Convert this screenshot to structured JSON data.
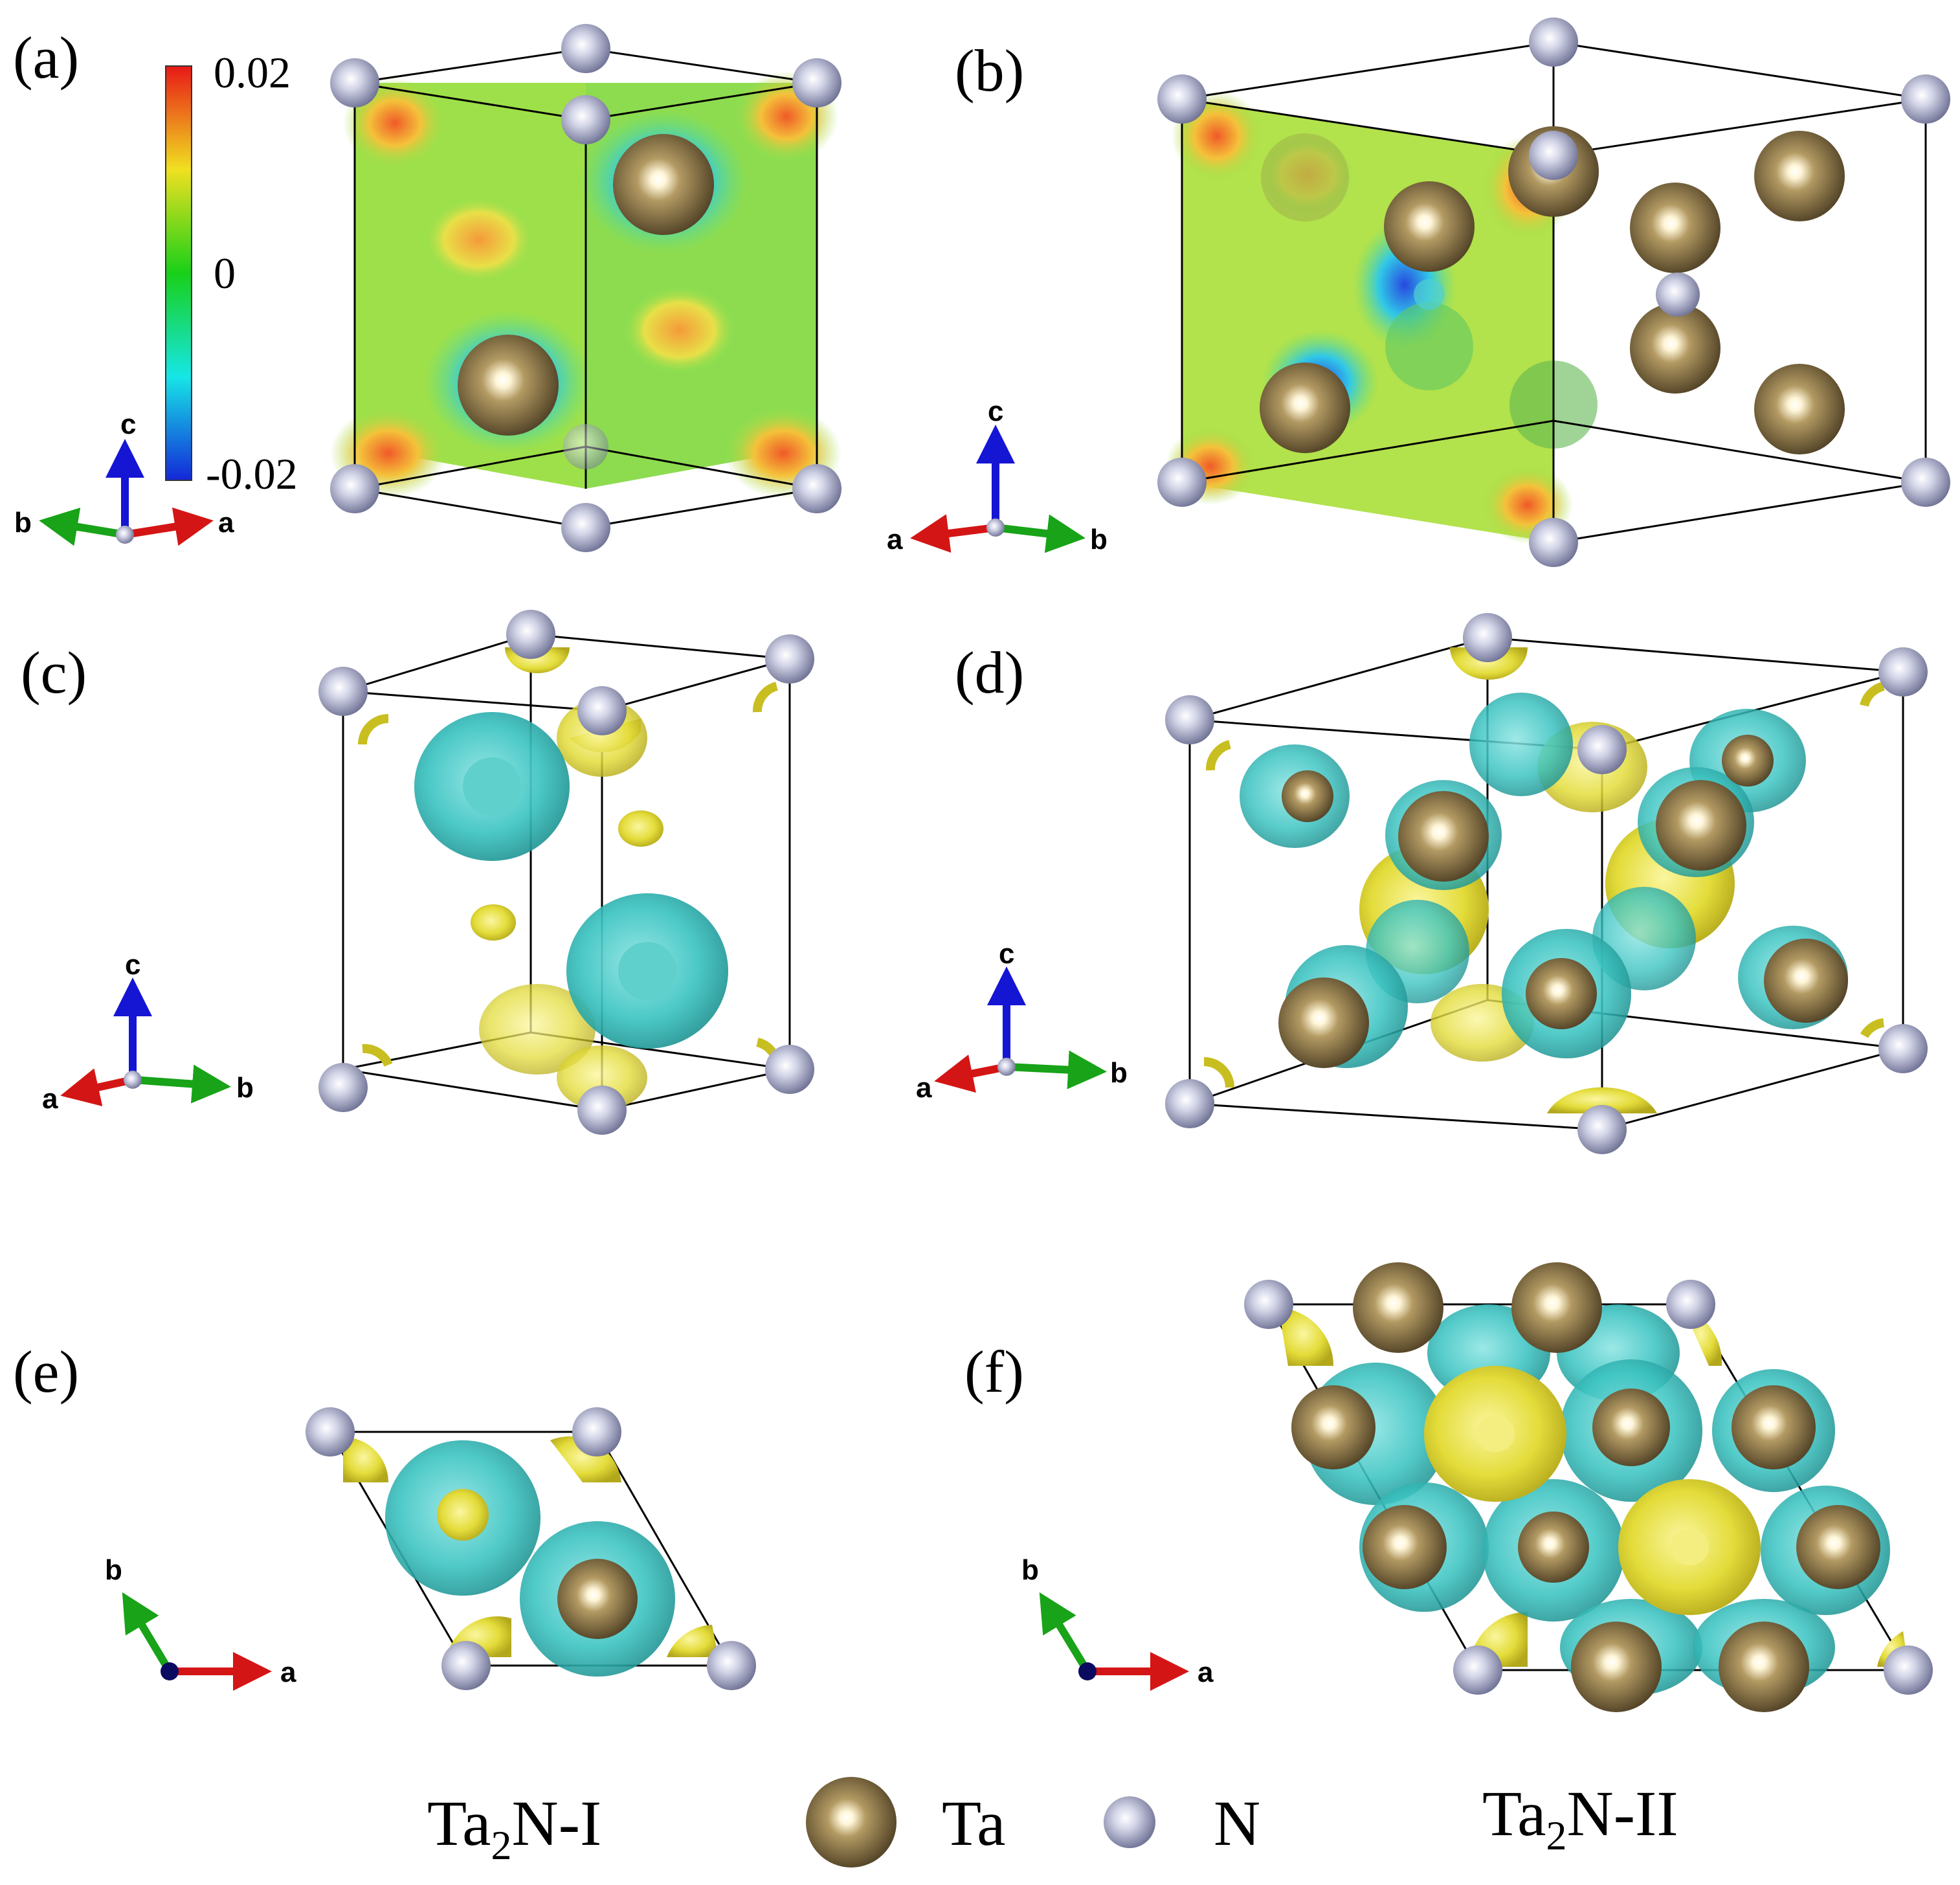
{
  "panels": {
    "a": {
      "label": "(a)"
    },
    "b": {
      "label": "(b)"
    },
    "c": {
      "label": "(c)"
    },
    "d": {
      "label": "(d)"
    },
    "e": {
      "label": "(e)"
    },
    "f": {
      "label": "(f)"
    }
  },
  "colorbar": {
    "max": "0.02",
    "mid": "0",
    "min": "-0.02"
  },
  "axes": {
    "a": "a",
    "b": "b",
    "c": "c"
  },
  "legend": {
    "ta2n_1": {
      "main": "Ta",
      "sub": "2",
      "rest": "N-I"
    },
    "ta2n_2": {
      "main": "Ta",
      "sub": "2",
      "rest": "N-II"
    },
    "ta": "Ta",
    "n": "N"
  },
  "colors": {
    "ta_atom": "#7d6840",
    "n_atom": "#9c9fbd",
    "isosurface_positive": "#e8e23a",
    "isosurface_negative": "#34c2c0",
    "axis_a": "#d41515",
    "axis_b": "#18a318",
    "axis_c": "#1515d4"
  }
}
